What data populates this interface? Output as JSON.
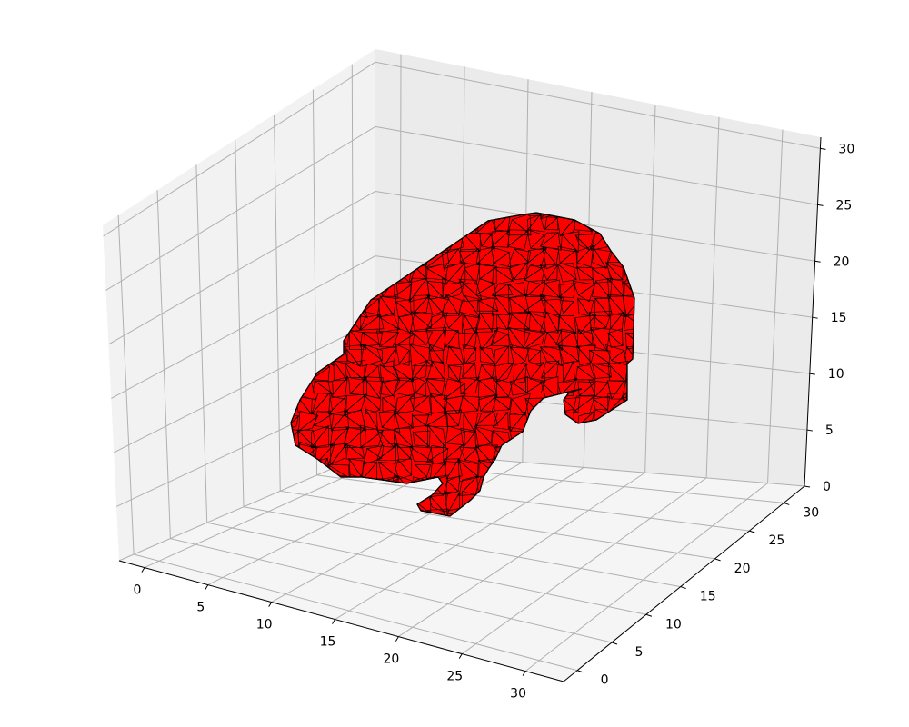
{
  "chart_data": {
    "type": "3d-surface",
    "description_shown": false,
    "mesh_color": "#ff0000",
    "edge_color": "#000000",
    "pane_colors": {
      "left": "#f2f2f2",
      "right": "#ebebeb",
      "floor": "#f5f5f5"
    },
    "grid_color": "#b0b0b0",
    "grid": true,
    "x_axis": {
      "ticks": [
        0,
        5,
        10,
        15,
        20,
        25,
        30
      ],
      "tick_labels": [
        "0",
        "5",
        "10",
        "15",
        "20",
        "25",
        "30"
      ]
    },
    "y_axis": {
      "ticks": [
        0,
        5,
        10,
        15,
        20,
        25,
        30
      ],
      "tick_labels": [
        "0",
        "5",
        "10",
        "15",
        "20",
        "25",
        "30"
      ]
    },
    "z_axis": {
      "ticks": [
        0,
        5,
        10,
        15,
        20,
        25,
        30
      ],
      "tick_labels": [
        "0",
        "5",
        "10",
        "15",
        "20",
        "25",
        "30"
      ]
    },
    "xlim": [
      -2,
      33
    ],
    "ylim": [
      -2,
      33
    ],
    "zlim": [
      0,
      31
    ]
  }
}
